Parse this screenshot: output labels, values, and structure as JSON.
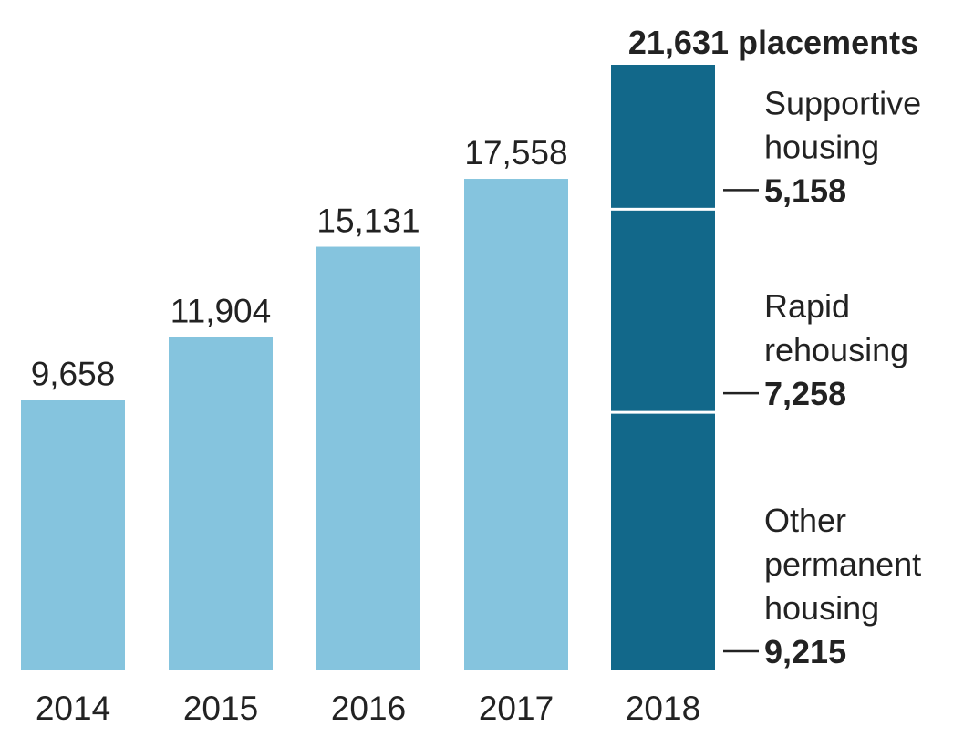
{
  "chart_data": {
    "type": "bar",
    "categories": [
      "2014",
      "2015",
      "2016",
      "2017",
      "2018"
    ],
    "values": [
      9658,
      11904,
      15131,
      17558,
      21631
    ],
    "value_labels": [
      "9,658",
      "11,904",
      "15,131",
      "17,558",
      "21,631"
    ],
    "total_label": "21,631 placements",
    "stacked_category": "2018",
    "segments": [
      {
        "name_lines": [
          "Other",
          "permanent",
          "housing"
        ],
        "value": 9215,
        "value_label": "9,215"
      },
      {
        "name_lines": [
          "Rapid",
          "rehousing"
        ],
        "value": 7258,
        "value_label": "7,258"
      },
      {
        "name_lines": [
          "Supportive",
          "housing"
        ],
        "value": 5158,
        "value_label": "5,158"
      }
    ],
    "ylim": [
      0,
      21631
    ],
    "grid": false,
    "legend": "none",
    "colors": {
      "bar": "#85c4de",
      "stacked": "#12688a",
      "divider": "#ffffff",
      "text": "#222222"
    }
  }
}
